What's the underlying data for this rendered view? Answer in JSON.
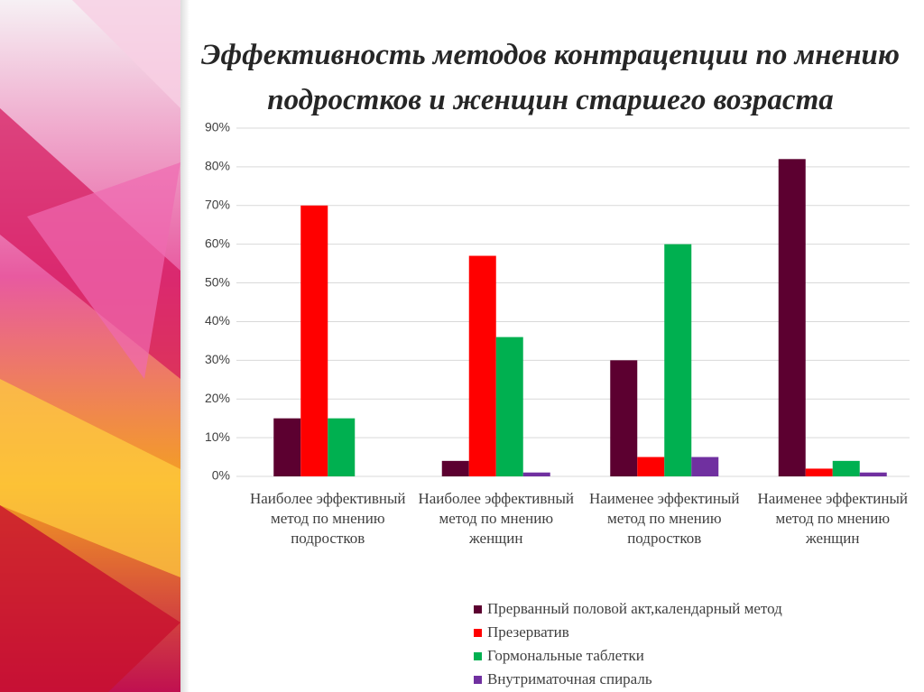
{
  "chart_data": {
    "type": "bar",
    "title": "Эффективность методов контрацепции по мнению подростков и женщин старшего возраста",
    "categories": [
      "Наиболее эффективный метод по мнению подростков",
      "Наиболее эффективный метод по мнению женщин",
      "Наименее эффектиный метод по мнению подростков",
      "Наименее эффектиный метод по мнению женщин"
    ],
    "series": [
      {
        "name": "Прерванный половой акт,календарный метод",
        "color": "#5c0030",
        "values": [
          15,
          4,
          30,
          82
        ]
      },
      {
        "name": "Презерватив",
        "color": "#ff0000",
        "values": [
          70,
          57,
          5,
          2
        ]
      },
      {
        "name": "Гормональные таблетки",
        "color": "#00b050",
        "values": [
          15,
          36,
          60,
          4
        ]
      },
      {
        "name": "Внутриматочная спираль",
        "color": "#7030a0",
        "values": [
          0,
          1,
          5,
          1
        ]
      }
    ],
    "ylim": [
      0,
      90
    ],
    "yticks": [
      {
        "value": 0,
        "label": "0%"
      },
      {
        "value": 10,
        "label": "10%"
      },
      {
        "value": 20,
        "label": "20%"
      },
      {
        "value": 30,
        "label": "30%"
      },
      {
        "value": 40,
        "label": "40%"
      },
      {
        "value": 50,
        "label": "50%"
      },
      {
        "value": 60,
        "label": "60%"
      },
      {
        "value": 70,
        "label": "70%"
      },
      {
        "value": 80,
        "label": "80%"
      },
      {
        "value": 90,
        "label": "90%"
      }
    ],
    "grid": true,
    "legend": "bottom"
  }
}
